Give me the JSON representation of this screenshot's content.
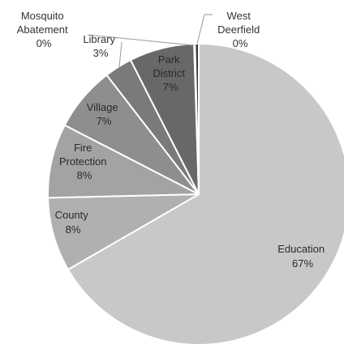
{
  "chart_data": {
    "type": "pie",
    "title": "",
    "slices": [
      {
        "name": "Education",
        "value": 67,
        "label_value": "67%",
        "color": "#c8c8c8"
      },
      {
        "name": "County",
        "value": 8,
        "label_value": "8%",
        "color": "#b0b0b0"
      },
      {
        "name": "Fire Protection",
        "value": 8,
        "label_value": "8%",
        "color": "#a3a3a3"
      },
      {
        "name": "Village",
        "value": 7,
        "label_value": "7%",
        "color": "#8e8e8e"
      },
      {
        "name": "Library",
        "value": 3,
        "label_value": "3%",
        "color": "#7a7a7a"
      },
      {
        "name": "Park District",
        "value": 7,
        "label_value": "7%",
        "color": "#686868"
      },
      {
        "name": "Mosquito Abatement",
        "value": 0.1,
        "label_value": "0%",
        "color": "#4a4a4a"
      },
      {
        "name": "West Deerfield",
        "value": 0.4,
        "label_value": "0%",
        "color": "#3a3a3a"
      }
    ]
  }
}
